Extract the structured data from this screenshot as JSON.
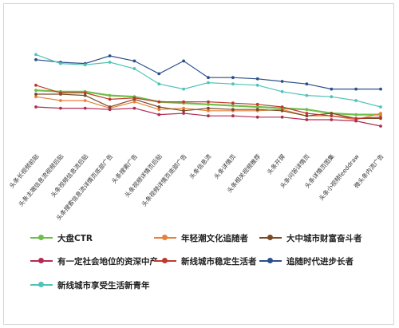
{
  "chart_data": {
    "type": "line",
    "categories": [
      "头条长视频前贴",
      "头条主端信息流视频后贴",
      "头条视频信息流后贴",
      "头条搜索信息流详情页底部广告",
      "头条搜索广告",
      "头条视频详情页后贴",
      "头条视频详情页底部广告",
      "头条信息流",
      "头条详情页",
      "头条相关视频推荐",
      "头条开屏",
      "头条问答详情页",
      "头条详情页图集",
      "头条小视频feeddraw",
      "微头条内流广告"
    ],
    "series": [
      {
        "name": "大盘CTR",
        "color": "#6fbe4a",
        "values": [
          48,
          47,
          47,
          44,
          43,
          39,
          38,
          37,
          36,
          35,
          34,
          33,
          30,
          29,
          29
        ]
      },
      {
        "name": "年轻潮文化追随者",
        "color": "#e8803a",
        "values": [
          43,
          40,
          40,
          34,
          39,
          33,
          34,
          32,
          32,
          32,
          33,
          28,
          28,
          25,
          30
        ]
      },
      {
        "name": "大中城市财富奋斗者",
        "color": "#7a4a25",
        "values": [
          45,
          45,
          44,
          35,
          41,
          35,
          32,
          34,
          33,
          33,
          32,
          28,
          30,
          26,
          26
        ]
      },
      {
        "name": "有一定社会地位的资深中产",
        "color": "#b22c52",
        "values": [
          35,
          34,
          34,
          33,
          34,
          29,
          30,
          28,
          28,
          27,
          27,
          25,
          25,
          24,
          20
        ]
      },
      {
        "name": "新线城市稳定生活者",
        "color": "#c0392b",
        "values": [
          52,
          46,
          46,
          41,
          42,
          39,
          39,
          39,
          38,
          37,
          35,
          30,
          28,
          26,
          27
        ]
      },
      {
        "name": "追随时代进步长者",
        "color": "#2b4f8a",
        "values": [
          72,
          70,
          69,
          75,
          71,
          61,
          71,
          58,
          58,
          57,
          55,
          53,
          49,
          49,
          49
        ]
      },
      {
        "name": "新线城市享受生活新青年",
        "color": "#4fc3b8",
        "values": [
          76,
          69,
          68,
          70,
          65,
          53,
          49,
          54,
          53,
          52,
          47,
          44,
          43,
          40,
          35
        ]
      }
    ],
    "ylim": [
      0,
      100
    ],
    "grid": false,
    "legend": "bottom"
  }
}
